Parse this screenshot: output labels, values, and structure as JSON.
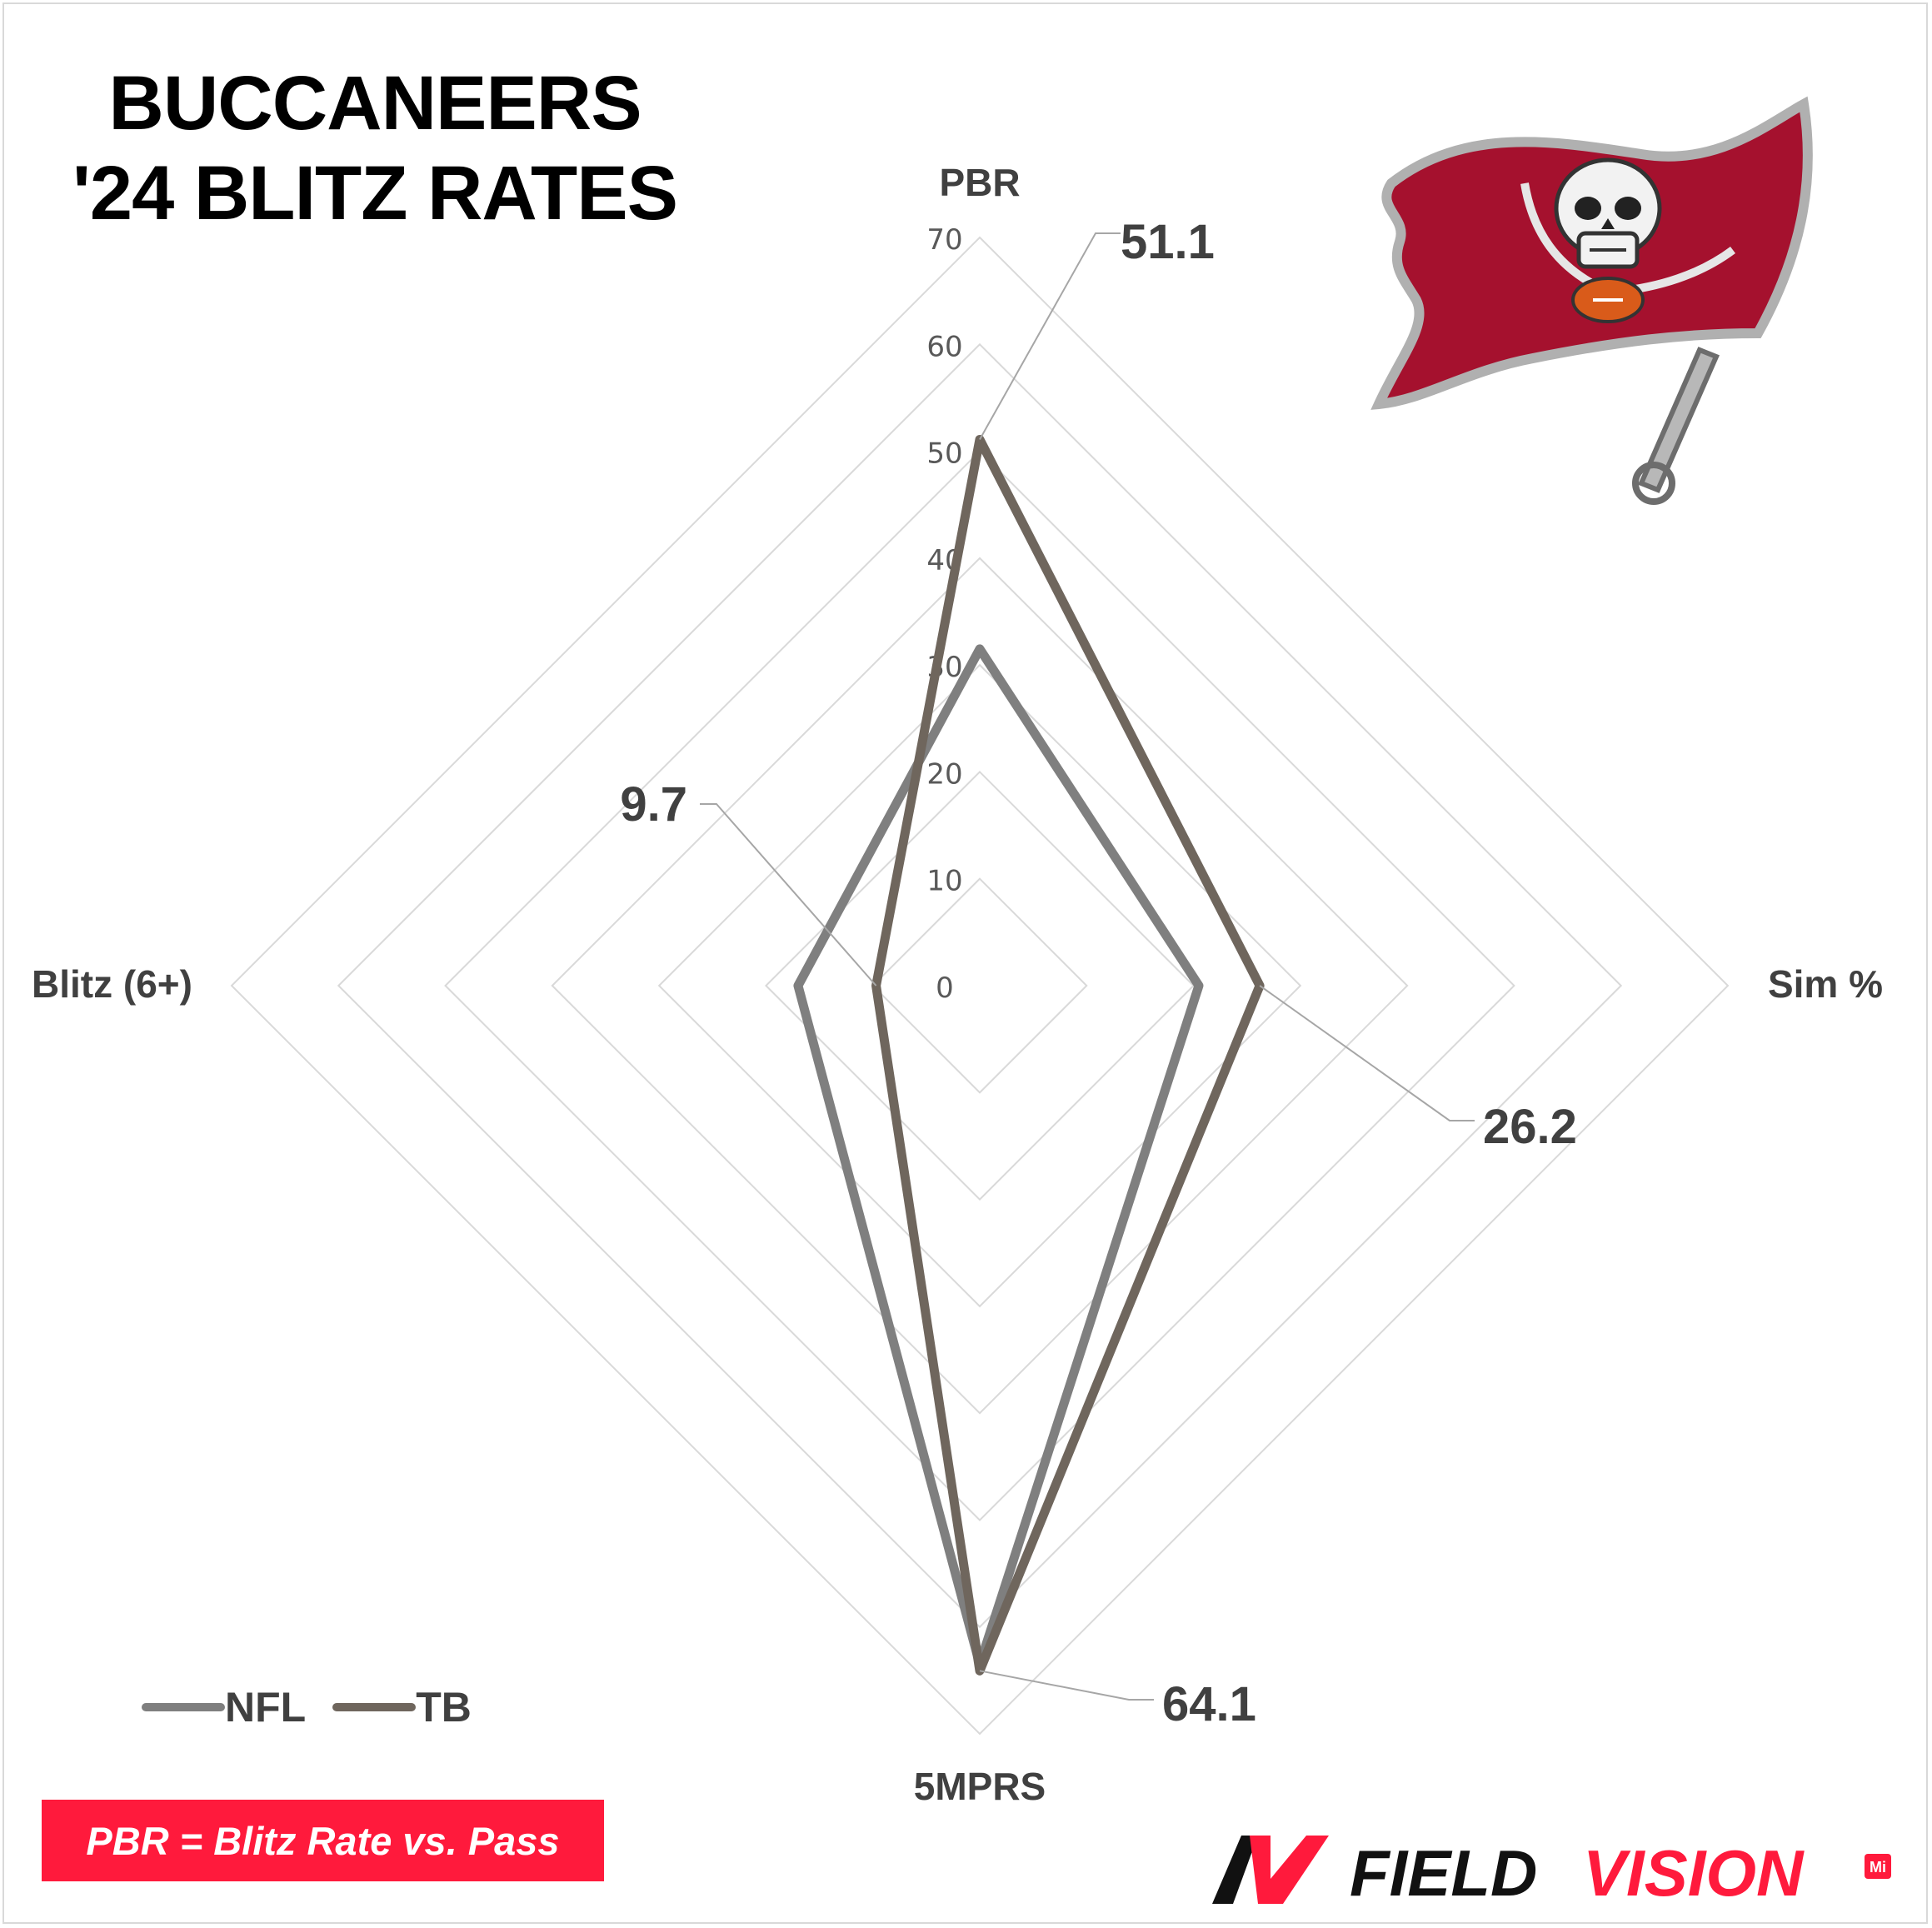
{
  "title": {
    "line1": "BUCCANEERS",
    "line2": "'24 BLITZ RATES"
  },
  "colors": {
    "nfl": "#7f7f7f",
    "tb": "#6f665d",
    "grid": "#d9d9d9",
    "footnote_bg": "#ff1a3c",
    "flag": "#a5112e",
    "brand_red": "#ff1a3c"
  },
  "legend": {
    "nfl": "NFL",
    "tb": "TB"
  },
  "footnote": "PBR = Blitz Rate vs. Pass",
  "brand": {
    "prefix": "FIELD",
    "suffix": "VISION",
    "mark": "Mi"
  },
  "logo": {
    "icon": "buccaneers-flag-skull-icon"
  },
  "chart_data": {
    "type": "radar",
    "axes": [
      "PBR",
      "Sim %",
      "5MPRS",
      "Blitz (6+)"
    ],
    "rlim": [
      0,
      70
    ],
    "ticks": [
      0,
      10,
      20,
      30,
      40,
      50,
      60,
      70
    ],
    "grid": true,
    "legend_position": "bottom-left",
    "series": [
      {
        "name": "NFL",
        "values": [
          31.5,
          20.5,
          63.5,
          17.0
        ]
      },
      {
        "name": "TB",
        "values": [
          51.1,
          26.2,
          64.1,
          9.7
        ]
      }
    ],
    "data_labels": [
      "51.1",
      "26.2",
      "64.1",
      "9.7"
    ]
  }
}
